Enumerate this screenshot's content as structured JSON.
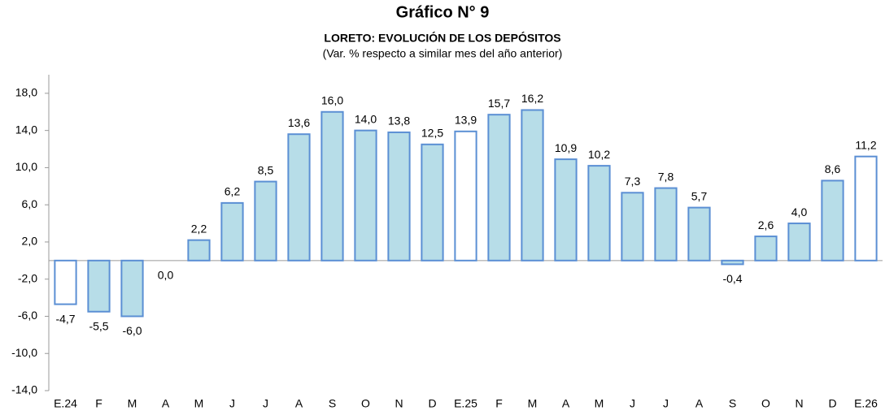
{
  "chart_data": {
    "type": "bar",
    "title": "Gráfico N° 9",
    "subtitle": "LORETO: EVOLUCIÓN DE LOS DEPÓSITOS",
    "note": "(Var. % respecto a similar mes del año anterior)",
    "categories": [
      "E.24",
      "F",
      "M",
      "A",
      "M",
      "J",
      "J",
      "A",
      "S",
      "O",
      "N",
      "D",
      "E.25",
      "F",
      "M",
      "A",
      "M",
      "J",
      "J",
      "A",
      "S",
      "O",
      "N",
      "D",
      "E.26"
    ],
    "values": [
      -4.7,
      -5.5,
      -6.0,
      0.0,
      2.2,
      6.2,
      8.5,
      13.6,
      16.0,
      14.0,
      13.8,
      12.5,
      13.9,
      15.7,
      16.2,
      10.9,
      10.2,
      7.3,
      7.8,
      5.7,
      -0.4,
      2.6,
      4.0,
      8.6,
      11.2
    ],
    "value_labels": [
      "-4,7",
      "-5,5",
      "-6,0",
      "0,0",
      "2,2",
      "6,2",
      "8,5",
      "13,6",
      "16,0",
      "14,0",
      "13,8",
      "12,5",
      "13,9",
      "15,7",
      "16,2",
      "10,9",
      "10,2",
      "7,3",
      "7,8",
      "5,7",
      "-0,4",
      "2,6",
      "4,0",
      "8,6",
      "11,2"
    ],
    "colors": [
      "#ffffff",
      "#b7dde8",
      "#b7dde8",
      "#b7dde8",
      "#b7dde8",
      "#b7dde8",
      "#b7dde8",
      "#b7dde8",
      "#b7dde8",
      "#b7dde8",
      "#b7dde8",
      "#b7dde8",
      "#ffffff",
      "#b7dde8",
      "#b7dde8",
      "#b7dde8",
      "#b7dde8",
      "#b7dde8",
      "#b7dde8",
      "#b7dde8",
      "#b7dde8",
      "#b7dde8",
      "#b7dde8",
      "#b7dde8",
      "#ffffff"
    ],
    "edge_color": "#5b8fd4",
    "ylim": [
      -14,
      20
    ],
    "yticks": [
      {
        "value": -14,
        "label": "-14,0"
      },
      {
        "value": -10,
        "label": "-10,0"
      },
      {
        "value": -6,
        "label": "-6,0"
      },
      {
        "value": -2,
        "label": "-2,0"
      },
      {
        "value": 2,
        "label": "2,0"
      },
      {
        "value": 6,
        "label": "6,0"
      },
      {
        "value": 10,
        "label": "10,0"
      },
      {
        "value": 14,
        "label": "14,0"
      },
      {
        "value": 18,
        "label": "18,0"
      }
    ],
    "grid": false
  }
}
